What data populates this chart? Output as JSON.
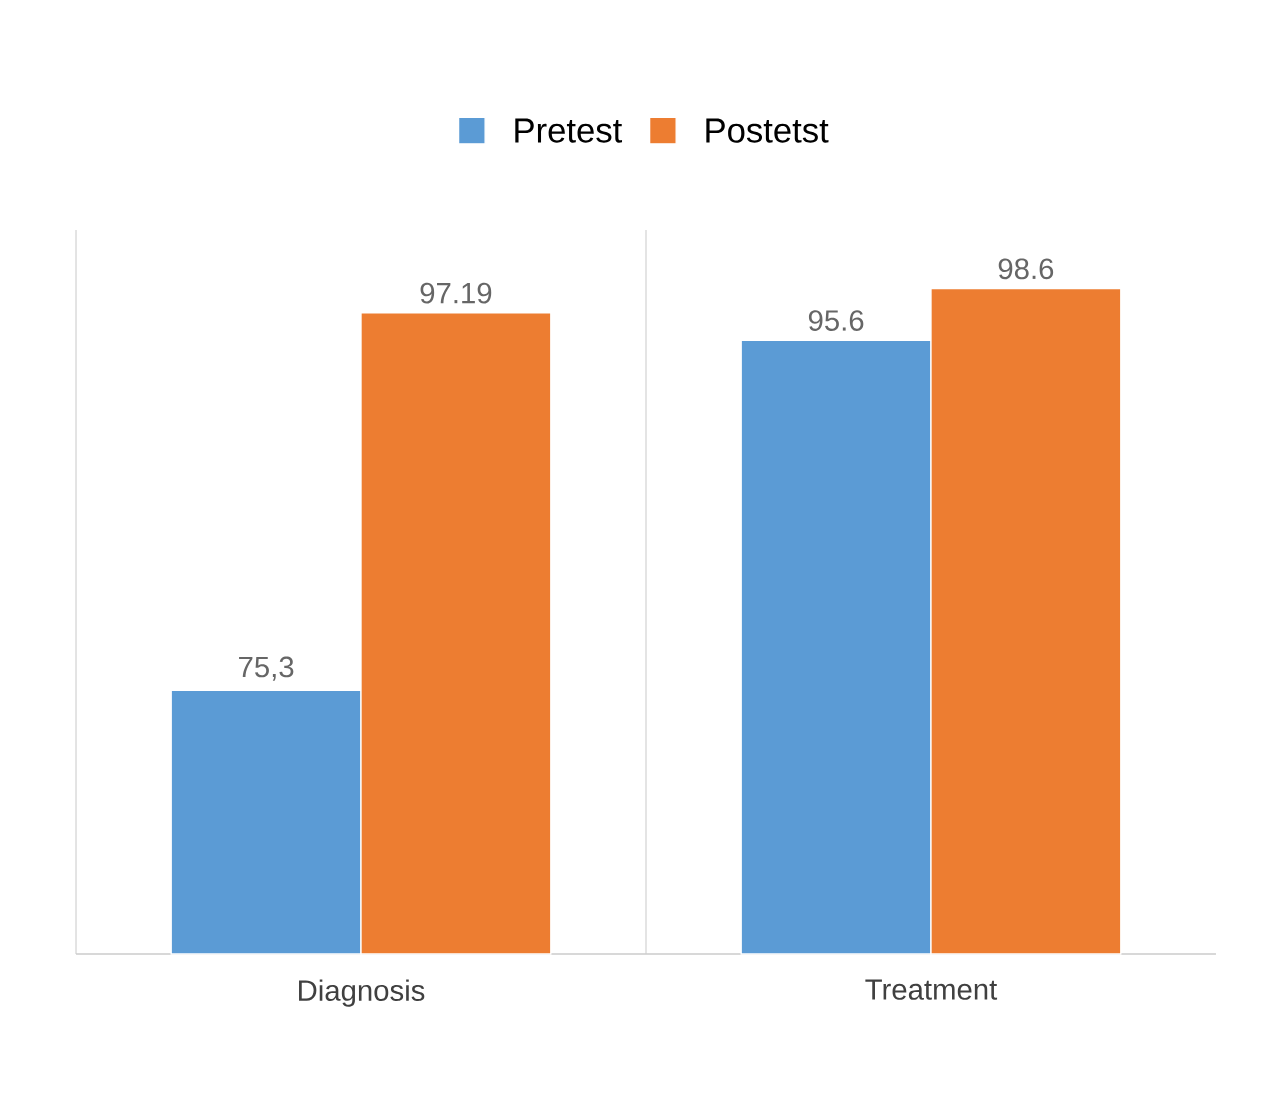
{
  "chart_data": {
    "type": "bar",
    "categories": [
      "Diagnosis",
      "Treatment"
    ],
    "series": [
      {
        "name": "Pretest",
        "color": "#5b9bd5",
        "values": [
          75.3,
          95.6
        ],
        "value_labels": [
          "75,3",
          "95.6"
        ]
      },
      {
        "name": "Postetst",
        "color": "#ed7d31",
        "values": [
          97.19,
          98.6
        ],
        "value_labels": [
          "97.19",
          "98.6"
        ]
      }
    ],
    "ylim": [
      60,
      102
    ],
    "legend": "top",
    "grid": "x"
  }
}
